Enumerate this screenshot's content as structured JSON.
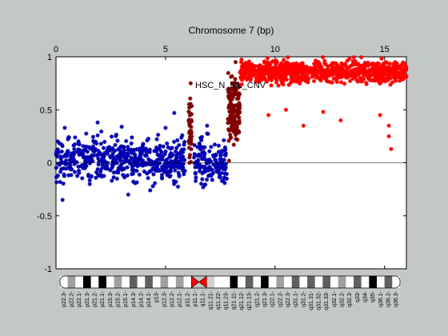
{
  "chart_data": {
    "type": "scatter",
    "title": "Chromosome 7 (bp)",
    "annotation": "HSC_N_ML_CNV",
    "xlim": [
      0,
      16
    ],
    "ylim": [
      -1,
      1
    ],
    "x_ticks": [
      0,
      5,
      10,
      15
    ],
    "y_ticks": [
      -1,
      -0.5,
      0,
      0.5,
      1
    ],
    "x_axis_position": "top",
    "grid": false,
    "reference_line": 0,
    "series": [
      {
        "color": "#0000b0",
        "segments": [
          {
            "x": [
              0.0,
              5.9
            ],
            "mean": 0.03,
            "spread": 0.2,
            "n": 520
          },
          {
            "x": [
              6.3,
              7.8
            ],
            "mean": 0.0,
            "spread": 0.22,
            "n": 150
          }
        ],
        "outliers": [
          {
            "x": 0.4,
            "y": 0.33
          },
          {
            "x": 1.9,
            "y": 0.38
          },
          {
            "x": 3.0,
            "y": 0.34
          },
          {
            "x": 5.0,
            "y": 0.33
          },
          {
            "x": 5.4,
            "y": 0.47
          },
          {
            "x": 0.3,
            "y": -0.35
          },
          {
            "x": 3.3,
            "y": -0.3
          },
          {
            "x": 6.9,
            "y": 0.35
          },
          {
            "x": 4.3,
            "y": -0.26
          }
        ]
      },
      {
        "color": "#800000",
        "segments": [
          {
            "x": [
              6.05,
              6.2
            ],
            "mean": 0.3,
            "spread": 0.25,
            "n": 40
          },
          {
            "x": [
              7.85,
              8.4
            ],
            "mean": 0.5,
            "spread": 0.28,
            "n": 140
          }
        ],
        "outliers": [
          {
            "x": 6.15,
            "y": 0.75
          },
          {
            "x": 6.1,
            "y": 0.0
          },
          {
            "x": 7.9,
            "y": 0.02
          },
          {
            "x": 8.2,
            "y": 0.95
          }
        ]
      },
      {
        "color": "#ff0000",
        "segments": [
          {
            "x": [
              8.4,
              16.0
            ],
            "mean": 0.86,
            "spread": 0.1,
            "n": 900
          }
        ],
        "outliers": [
          {
            "x": 15.2,
            "y": 0.25
          },
          {
            "x": 15.3,
            "y": 0.13
          },
          {
            "x": 15.2,
            "y": 0.35
          },
          {
            "x": 9.7,
            "y": 0.45
          },
          {
            "x": 11.3,
            "y": 0.35
          },
          {
            "x": 13.0,
            "y": 0.4
          },
          {
            "x": 14.8,
            "y": 0.45
          },
          {
            "x": 10.5,
            "y": 0.5
          },
          {
            "x": 12.2,
            "y": 0.48
          }
        ]
      }
    ]
  },
  "ideogram": {
    "band_labels": [
      "p22.3",
      "p22.2",
      "p22.1",
      "p21.3",
      "p21.2",
      "p21.1",
      "p15.3",
      "p15.2",
      "p15.1",
      "p14.3",
      "p14.2",
      "p14.1",
      "p13",
      "p12.3",
      "p12.2",
      "p12.1",
      "p11.2",
      "p11.1",
      "q11.1",
      "q11.21",
      "q11.22",
      "q11.23",
      "q21.11",
      "q21.12",
      "q21.13",
      "q21.2",
      "q21.3",
      "q22.1",
      "q22.2",
      "q22.3",
      "q31.1",
      "q31.2",
      "q31.31",
      "q31.32",
      "q31.33",
      "q32.1",
      "q32.2",
      "q32.3",
      "q33",
      "q34",
      "q35",
      "q36.1",
      "q36.2",
      "q36.3"
    ],
    "bands": [
      {
        "name": "p22.3",
        "stain": "w"
      },
      {
        "name": "p22.2",
        "stain": "g"
      },
      {
        "name": "p22.1",
        "stain": "w"
      },
      {
        "name": "p21.3",
        "stain": "k"
      },
      {
        "name": "p21.2",
        "stain": "w"
      },
      {
        "name": "p21.1",
        "stain": "k"
      },
      {
        "name": "p15.3",
        "stain": "w"
      },
      {
        "name": "p15.2",
        "stain": "g"
      },
      {
        "name": "p15.1",
        "stain": "w"
      },
      {
        "name": "p14.3",
        "stain": "d"
      },
      {
        "name": "p14.2",
        "stain": "w"
      },
      {
        "name": "p14.1",
        "stain": "d"
      },
      {
        "name": "p13",
        "stain": "w"
      },
      {
        "name": "p12.3",
        "stain": "g"
      },
      {
        "name": "p12.2",
        "stain": "w"
      },
      {
        "name": "p12.1",
        "stain": "g"
      },
      {
        "name": "p11.2",
        "stain": "w"
      },
      {
        "name": "p11.1",
        "stain": "c"
      },
      {
        "name": "q11.1",
        "stain": "c"
      },
      {
        "name": "q11.21",
        "stain": "l"
      },
      {
        "name": "q11.22",
        "stain": "w"
      },
      {
        "name": "q11.23",
        "stain": "w"
      },
      {
        "name": "q21.11",
        "stain": "k"
      },
      {
        "name": "q21.12",
        "stain": "w"
      },
      {
        "name": "q21.13",
        "stain": "d"
      },
      {
        "name": "q21.2",
        "stain": "w"
      },
      {
        "name": "q21.3",
        "stain": "k"
      },
      {
        "name": "q22.1",
        "stain": "w"
      },
      {
        "name": "q22.2",
        "stain": "g"
      },
      {
        "name": "q22.3",
        "stain": "w"
      },
      {
        "name": "q31.1",
        "stain": "d"
      },
      {
        "name": "q31.2",
        "stain": "w"
      },
      {
        "name": "q31.31",
        "stain": "d"
      },
      {
        "name": "q31.32",
        "stain": "w"
      },
      {
        "name": "q31.33",
        "stain": "d"
      },
      {
        "name": "q32.1",
        "stain": "w"
      },
      {
        "name": "q32.2",
        "stain": "g"
      },
      {
        "name": "q32.3",
        "stain": "w"
      },
      {
        "name": "q33",
        "stain": "d"
      },
      {
        "name": "q34",
        "stain": "w"
      },
      {
        "name": "q35",
        "stain": "k"
      },
      {
        "name": "q36.1",
        "stain": "w"
      },
      {
        "name": "q36.2",
        "stain": "d"
      },
      {
        "name": "q36.3",
        "stain": "w"
      }
    ]
  }
}
